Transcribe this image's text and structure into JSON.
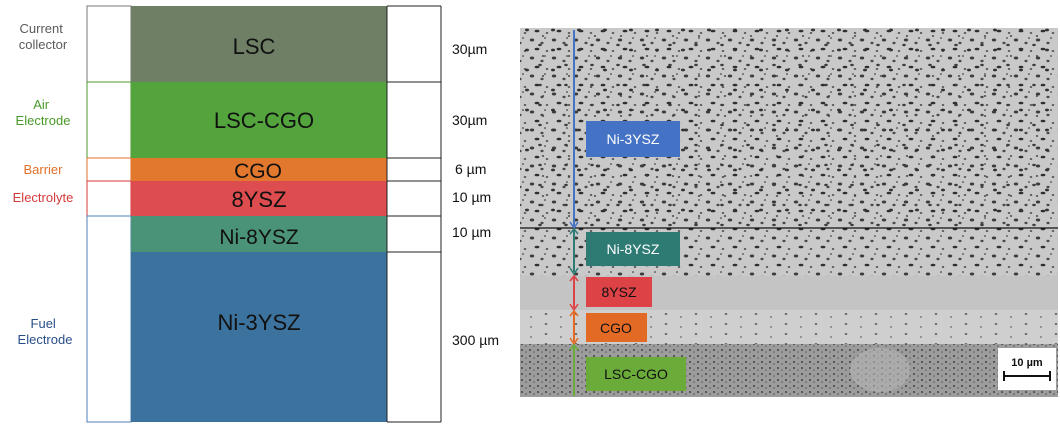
{
  "roles": {
    "current_collector": [
      "Current",
      "collector"
    ],
    "air_electrode": [
      "Air",
      "Electrode"
    ],
    "barrier": "Barrier",
    "electrolyte": "Electrolyte",
    "fuel_electrode": [
      "Fuel",
      "Electrode"
    ]
  },
  "role_colors": {
    "current_collector": "#5a5a5a",
    "air_electrode": "#4a9a2a",
    "barrier": "#e0702a",
    "electrolyte": "#d43a3a",
    "fuel_electrode": "#2a4f88"
  },
  "layers": [
    {
      "label": "LSC",
      "thickness": "30µm",
      "color": "#6e7f66"
    },
    {
      "label": "LSC-CGO",
      "thickness": "30µm",
      "color": "#53a43c"
    },
    {
      "label": "CGO",
      "thickness": "6 µm",
      "color": "#e2782e"
    },
    {
      "label": "8YSZ",
      "thickness": "10 µm",
      "color": "#dd4c4e"
    },
    {
      "label": "Ni-8YSZ",
      "thickness": "10 µm",
      "color": "#4a9278"
    },
    {
      "label": "Ni-3YSZ",
      "thickness": "300 µm",
      "color": "#3c729e"
    }
  ],
  "micrograph": {
    "labels": [
      {
        "text": "Ni-3YSZ",
        "color": "#4472c4"
      },
      {
        "text": "Ni-8YSZ",
        "color": "#2e7b74"
      },
      {
        "text": "8YSZ",
        "color": "#dc4246"
      },
      {
        "text": "CGO",
        "color": "#e36a25"
      },
      {
        "text": "LSC-CGO",
        "color": "#6aab3a"
      }
    ],
    "scale_bar": "10 µm"
  }
}
